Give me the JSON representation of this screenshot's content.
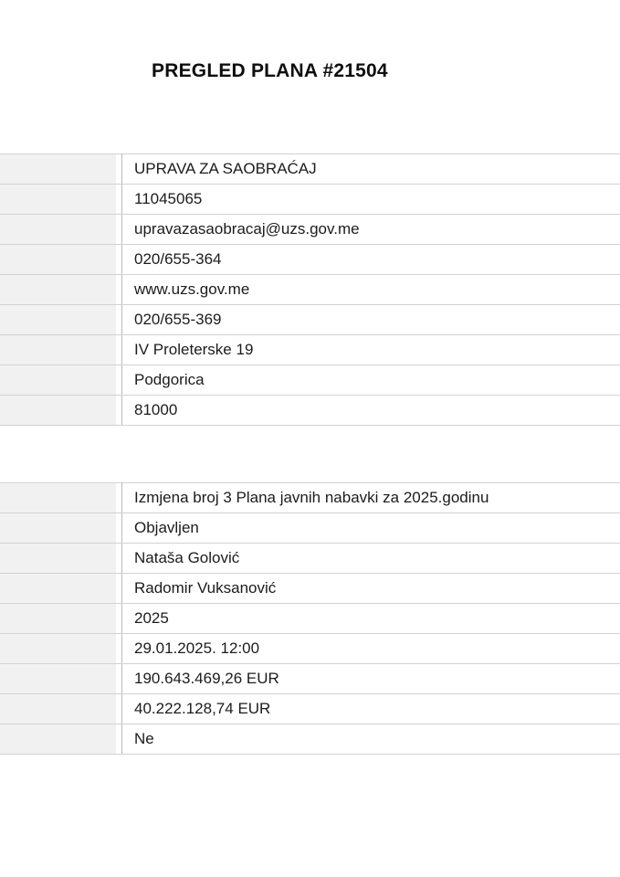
{
  "title": "PREGLED PLANA #21504",
  "buyer_table": {
    "rows": [
      {
        "label": "",
        "value": "UPRAVA ZA SAOBRAĆAJ"
      },
      {
        "label": "",
        "value": "11045065"
      },
      {
        "label": "",
        "value": "upravazasaobracaj@uzs.gov.me"
      },
      {
        "label": "",
        "value": "020/655-364"
      },
      {
        "label": "",
        "value": "www.uzs.gov.me"
      },
      {
        "label": "",
        "value": "020/655-369"
      },
      {
        "label": "",
        "value": "IV Proleterske 19"
      },
      {
        "label": "",
        "value": "Podgorica"
      },
      {
        "label": "",
        "value": "81000"
      }
    ]
  },
  "plan_table": {
    "rows": [
      {
        "label": "",
        "value": "Izmjena broj 3 Plana javnih nabavki za 2025.godinu"
      },
      {
        "label": "",
        "value": "Objavljen"
      },
      {
        "label": "",
        "value": "Nataša Golović"
      },
      {
        "label": "",
        "value": "Radomir Vuksanović"
      },
      {
        "label": "",
        "value": "2025"
      },
      {
        "label": "",
        "value": "29.01.2025. 12:00"
      },
      {
        "label": "",
        "value": "190.643.469,26 EUR"
      },
      {
        "label": "",
        "value": "40.222.128,74 EUR"
      },
      {
        "label": "",
        "value": "Ne"
      }
    ]
  }
}
